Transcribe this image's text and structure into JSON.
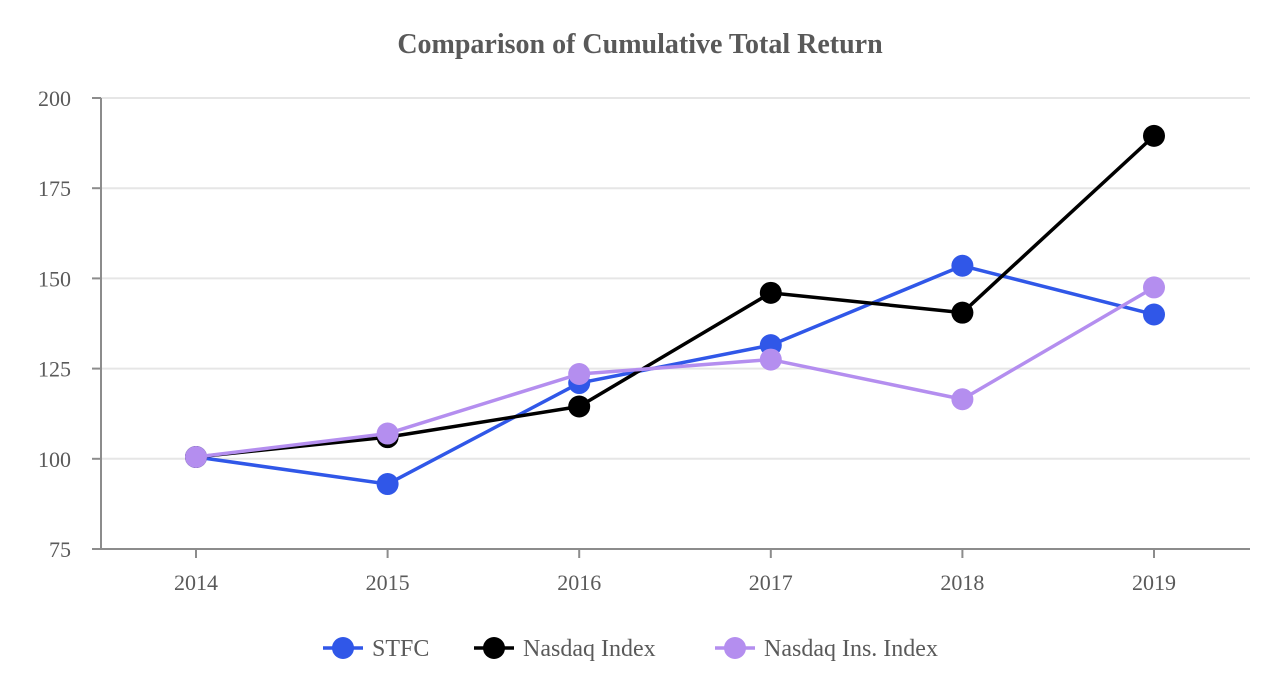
{
  "chart_data": {
    "type": "line",
    "title": "Comparison of Cumulative Total Return",
    "xlabel": "",
    "ylabel": "",
    "categories": [
      "2014",
      "2015",
      "2016",
      "2017",
      "2018",
      "2019"
    ],
    "ylim": [
      75,
      200
    ],
    "yticks": [
      "75",
      "100",
      "125",
      "150",
      "175",
      "200"
    ],
    "grid": true,
    "legend_position": "bottom-center",
    "series": [
      {
        "name": "STFC",
        "color": "#3057e8",
        "values": [
          100.5,
          93,
          121,
          131.5,
          153.5,
          140
        ]
      },
      {
        "name": "Nasdaq Index",
        "color": "#000000",
        "values": [
          100.5,
          106,
          114.5,
          146,
          140.5,
          189.5
        ]
      },
      {
        "name": "Nasdaq Ins. Index",
        "color": "#b48eef",
        "values": [
          100.5,
          107,
          123.5,
          127.5,
          116.5,
          147.5
        ]
      }
    ]
  }
}
